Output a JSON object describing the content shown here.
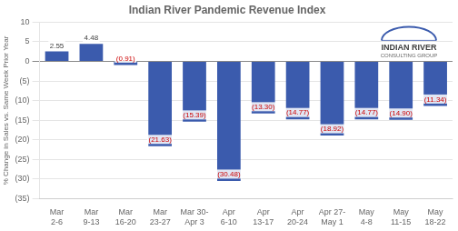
{
  "chart_data": {
    "type": "bar",
    "title": "Indian River Pandemic Revenue Index",
    "y_label": "% Change in Sales vs. Same Week Prior Year",
    "categories": [
      "Mar\n2-6",
      "Mar\n9-13",
      "Mar\n16-20",
      "Mar\n23-27",
      "Mar 30-\nApr 3",
      "Apr\n6-10",
      "Apr\n13-17",
      "Apr\n20-24",
      "Apr 27-\nMay 1",
      "May\n4-8",
      "May\n11-15",
      "May\n18-22"
    ],
    "values": [
      2.55,
      4.48,
      -0.91,
      -21.63,
      -15.39,
      -30.48,
      -13.3,
      -14.77,
      -18.92,
      -14.77,
      -14.9,
      -11.34
    ],
    "value_labels": [
      "2.55",
      "4.48",
      "(0.91)",
      "(21.63)",
      "(15.39)",
      "(30.48)",
      "(13.30)",
      "(14.77)",
      "(18.92)",
      "(14.77)",
      "(14.90)",
      "(11.34)"
    ],
    "data_labels": true,
    "color": "#3B5BAD",
    "ylim": [
      -35,
      10
    ],
    "yticks": [
      10,
      5,
      0,
      {
        "value": -5,
        "label": "(5)"
      },
      {
        "value": -10,
        "label": "(10)"
      },
      {
        "value": -15,
        "label": "(15)"
      },
      {
        "value": -20,
        "label": "(20)"
      },
      {
        "value": -25,
        "label": "(25)"
      },
      {
        "value": -30,
        "label": "(30)"
      },
      {
        "value": -35,
        "label": "(35)"
      }
    ],
    "grid": true,
    "annotations": [
      "INDIAN RIVER",
      "CONSULTING GROUP"
    ]
  }
}
